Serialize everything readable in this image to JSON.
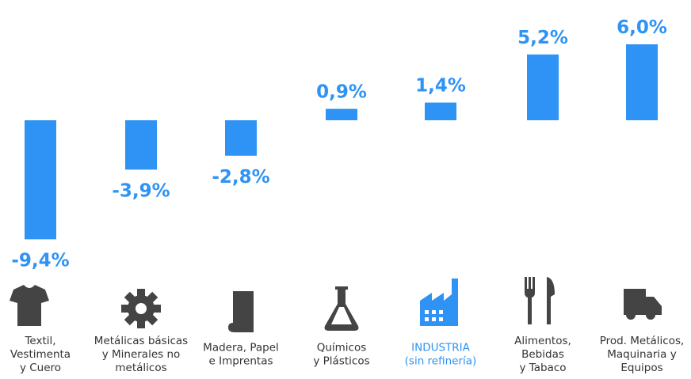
{
  "chart_data": {
    "type": "bar",
    "categories": [
      "Textil,\nVestimenta\ny Cuero",
      "Metálicas básicas\ny Minerales no\nmetálicos",
      "Madera, Papel\ne Imprentas",
      "Químicos\ny Plásticos",
      "INDUSTRIA\n(sin refinería)",
      "Alimentos,\nBebidas\ny Tabaco",
      "Prod. Metálicos,\nMaquinaria y\nEquipos"
    ],
    "values": [
      -9.4,
      -3.9,
      -2.8,
      0.9,
      1.4,
      5.2,
      6.0
    ],
    "value_labels": [
      "-9,4%",
      "-3,9%",
      "-2,8%",
      "0,9%",
      "1,4%",
      "5,2%",
      "6,0%"
    ],
    "color": "#2e93f5",
    "label_colors": [
      "#333333",
      "#333333",
      "#333333",
      "#333333",
      "#2e93f5",
      "#333333",
      "#333333"
    ]
  }
}
